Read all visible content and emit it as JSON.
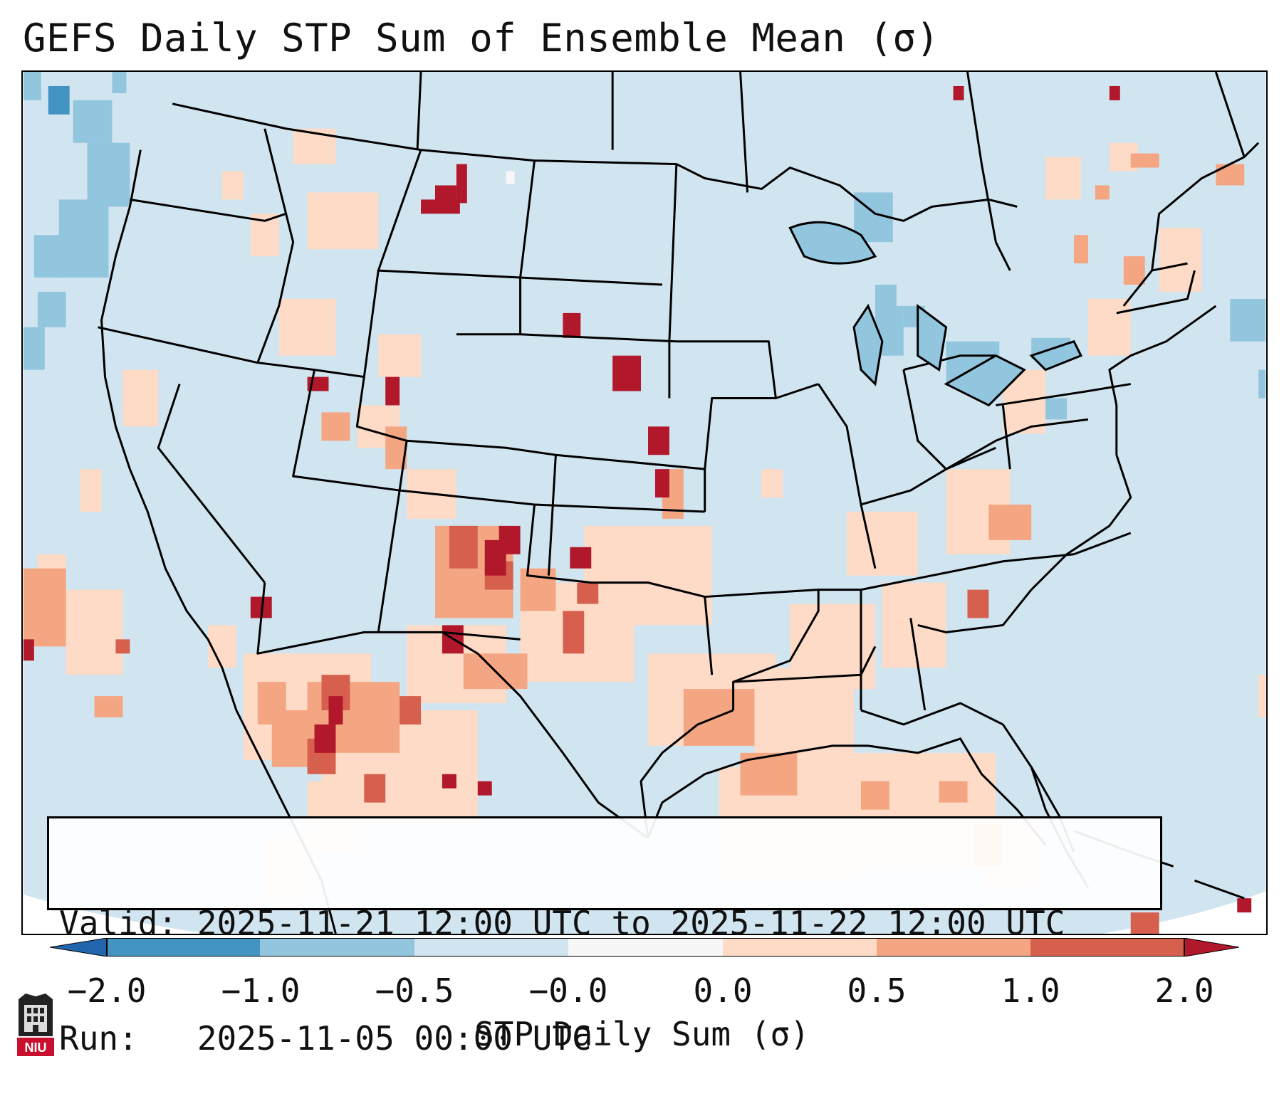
{
  "title": "GEFS Daily STP Sum of Ensemble Mean (σ)",
  "info": {
    "valid_line": "Valid: 2025-11-21 12:00 UTC to 2025-11-22 12:00 UTC",
    "run_line": "Run:   2025-11-05 00:00 UTC"
  },
  "colorbar": {
    "label": "STP Daily Sum (σ)",
    "ticks": [
      "−2.0",
      "−1.0",
      "−0.5",
      "−0.0",
      "0.0",
      "0.5",
      "1.0",
      "2.0"
    ],
    "colors": {
      "below_min": "#2166ac",
      "bin_neg2_neg1": "#4393c3",
      "bin_neg1_neg05": "#92c5de",
      "bin_neg05_0": "#d1e5f0",
      "bin_zero": "#f7f7f7",
      "bin_0_05": "#fddbc7",
      "bin_05_1": "#f4a582",
      "bin_1_2": "#d6604d",
      "above_max": "#b2182b"
    }
  },
  "map": {
    "projection": "Lambert Conformal",
    "region": "CONUS",
    "background_color": "#d1e5f0"
  },
  "logo": {
    "text": "NIU",
    "color": "#c8102e"
  }
}
